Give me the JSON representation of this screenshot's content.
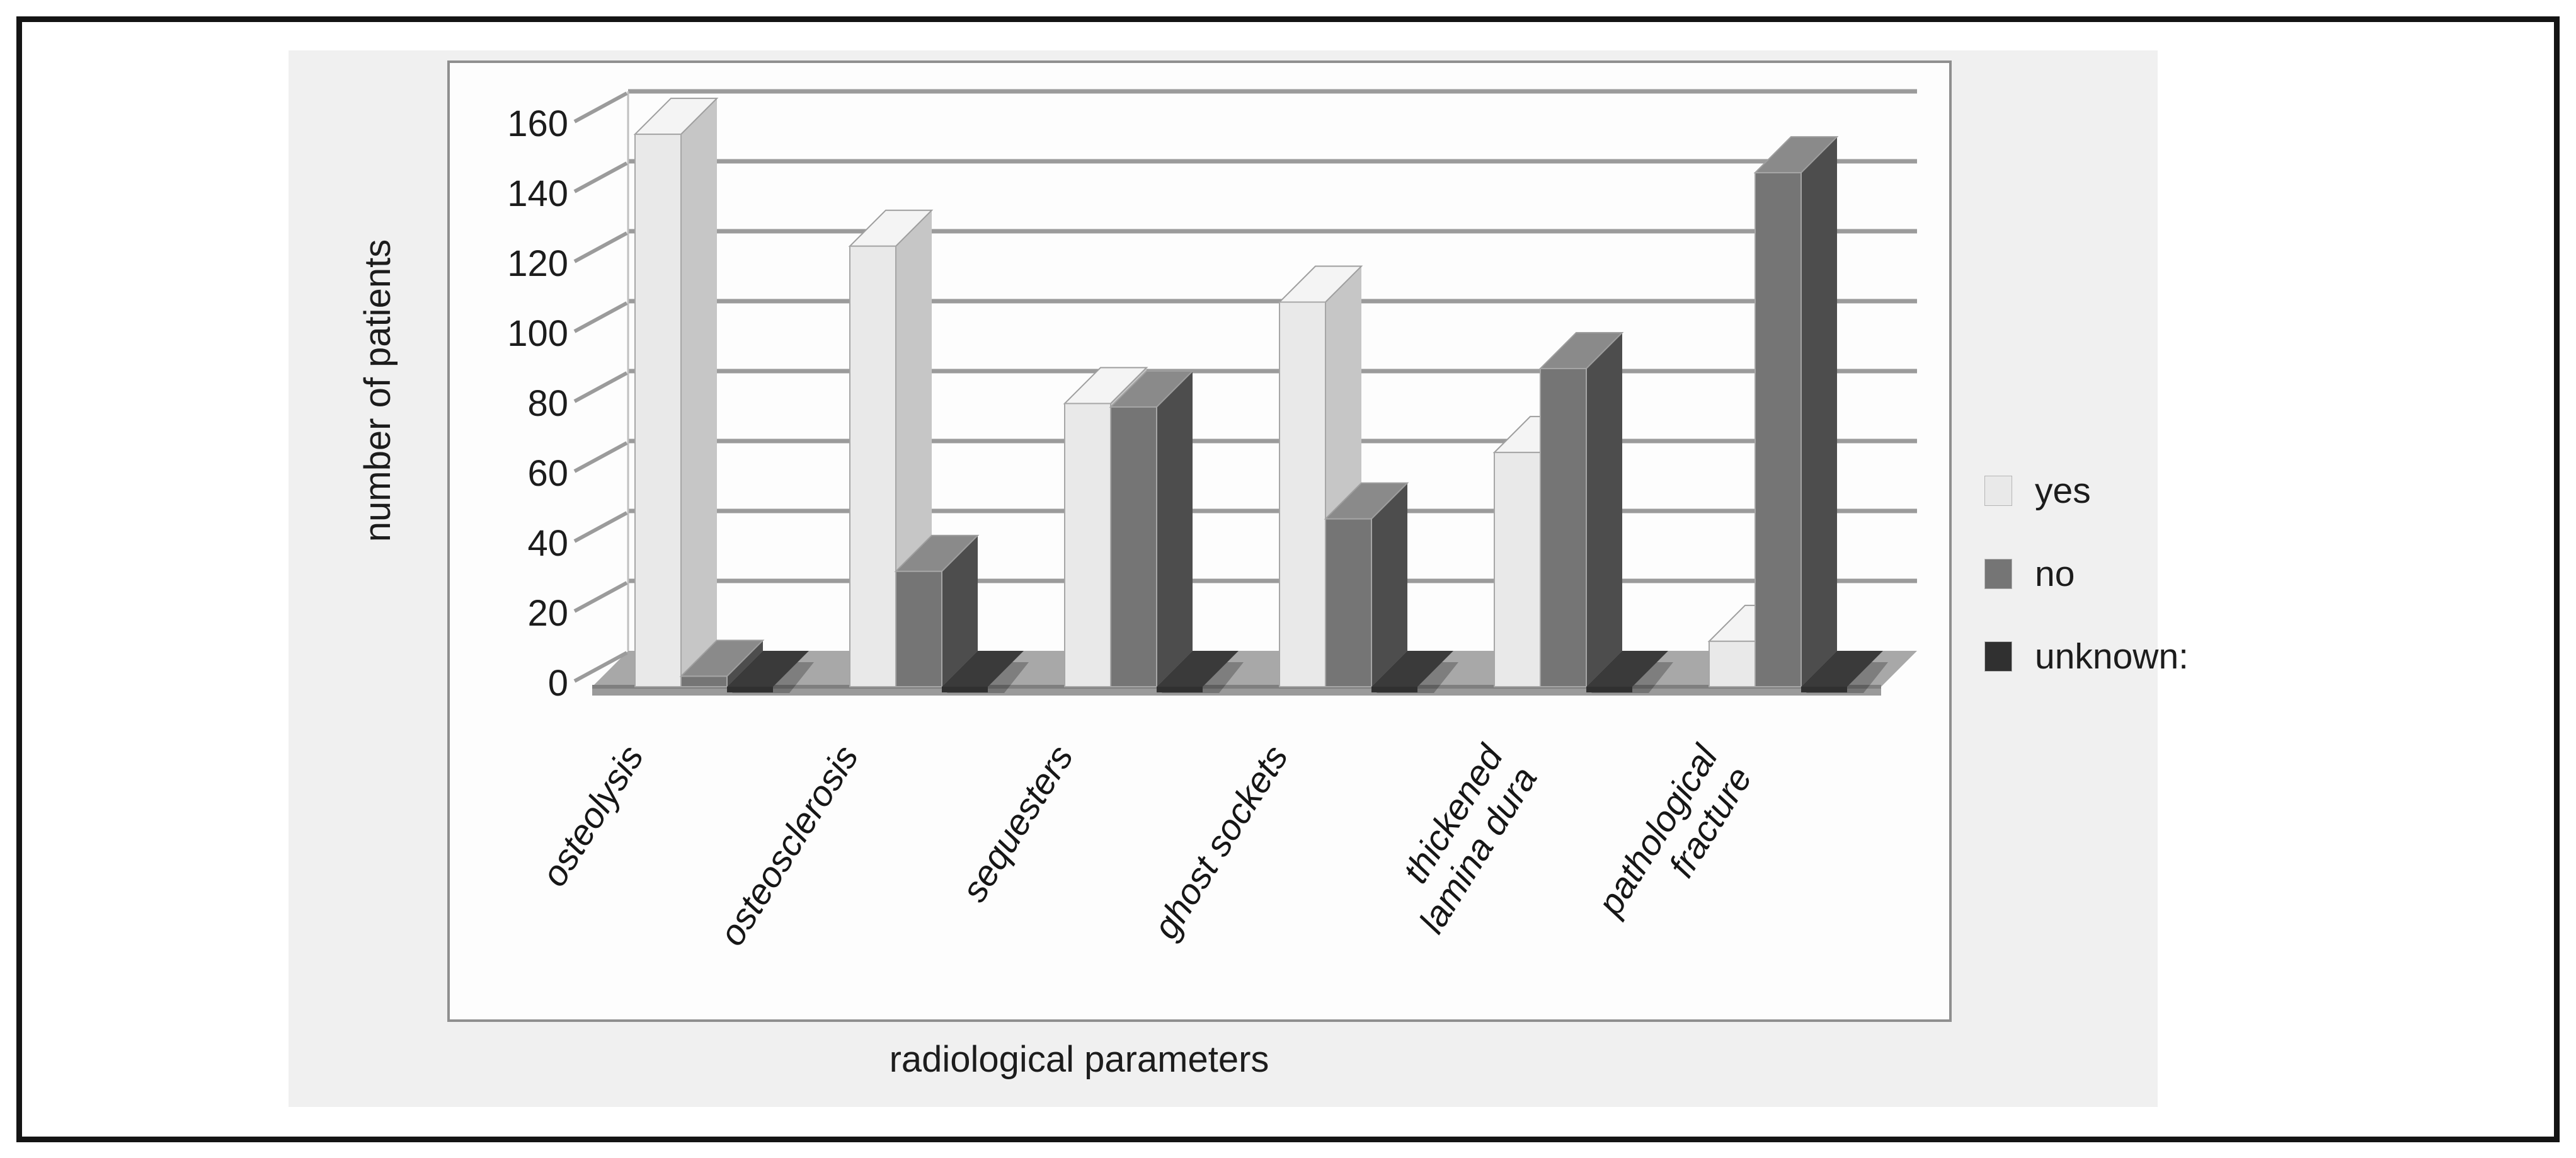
{
  "figure": {
    "x_axis_title": "radiological parameters",
    "y_axis_title": "number of patients"
  },
  "colors": {
    "frame": "#141414",
    "panel_background": "#f0f0f0",
    "plot_background": "#fdfdfd",
    "plot_border": "#8f8f8f",
    "gridline": "#9b9b9b",
    "floor": "#a8a8a8",
    "floor_edge": "#7f7f7f",
    "text": "#1c1c1c"
  },
  "chart_data": {
    "type": "bar",
    "variant": "3d-clustered-column",
    "title": "",
    "xlabel": "radiological parameters",
    "ylabel": "number of patients",
    "ylim": [
      0,
      160
    ],
    "yticks": [
      0,
      20,
      40,
      60,
      80,
      100,
      120,
      140,
      160
    ],
    "grid": true,
    "legend_position": "right",
    "categories": [
      [
        "osteolysis"
      ],
      [
        "osteosclerosis"
      ],
      [
        "sequesters"
      ],
      [
        "ghost sockets"
      ],
      [
        "thickened",
        "lamina dura"
      ],
      [
        "pathological",
        "fracture"
      ]
    ],
    "series": [
      {
        "name": "yes",
        "values": [
          158,
          126,
          81,
          110,
          67,
          13
        ],
        "front_color": "#e9e9e9",
        "side_color": "#c6c6c6",
        "top_color": "#f4f4f4"
      },
      {
        "name": "no",
        "values": [
          3,
          33,
          80,
          48,
          91,
          147
        ],
        "front_color": "#757575",
        "side_color": "#4d4d4d",
        "top_color": "#8a8a8a"
      },
      {
        "name": "unknown:",
        "values": [
          0,
          0,
          0,
          0,
          0,
          0
        ],
        "front_color": "#303030",
        "side_color": "#1f1f1f",
        "top_color": "#3a3a3a"
      }
    ]
  }
}
